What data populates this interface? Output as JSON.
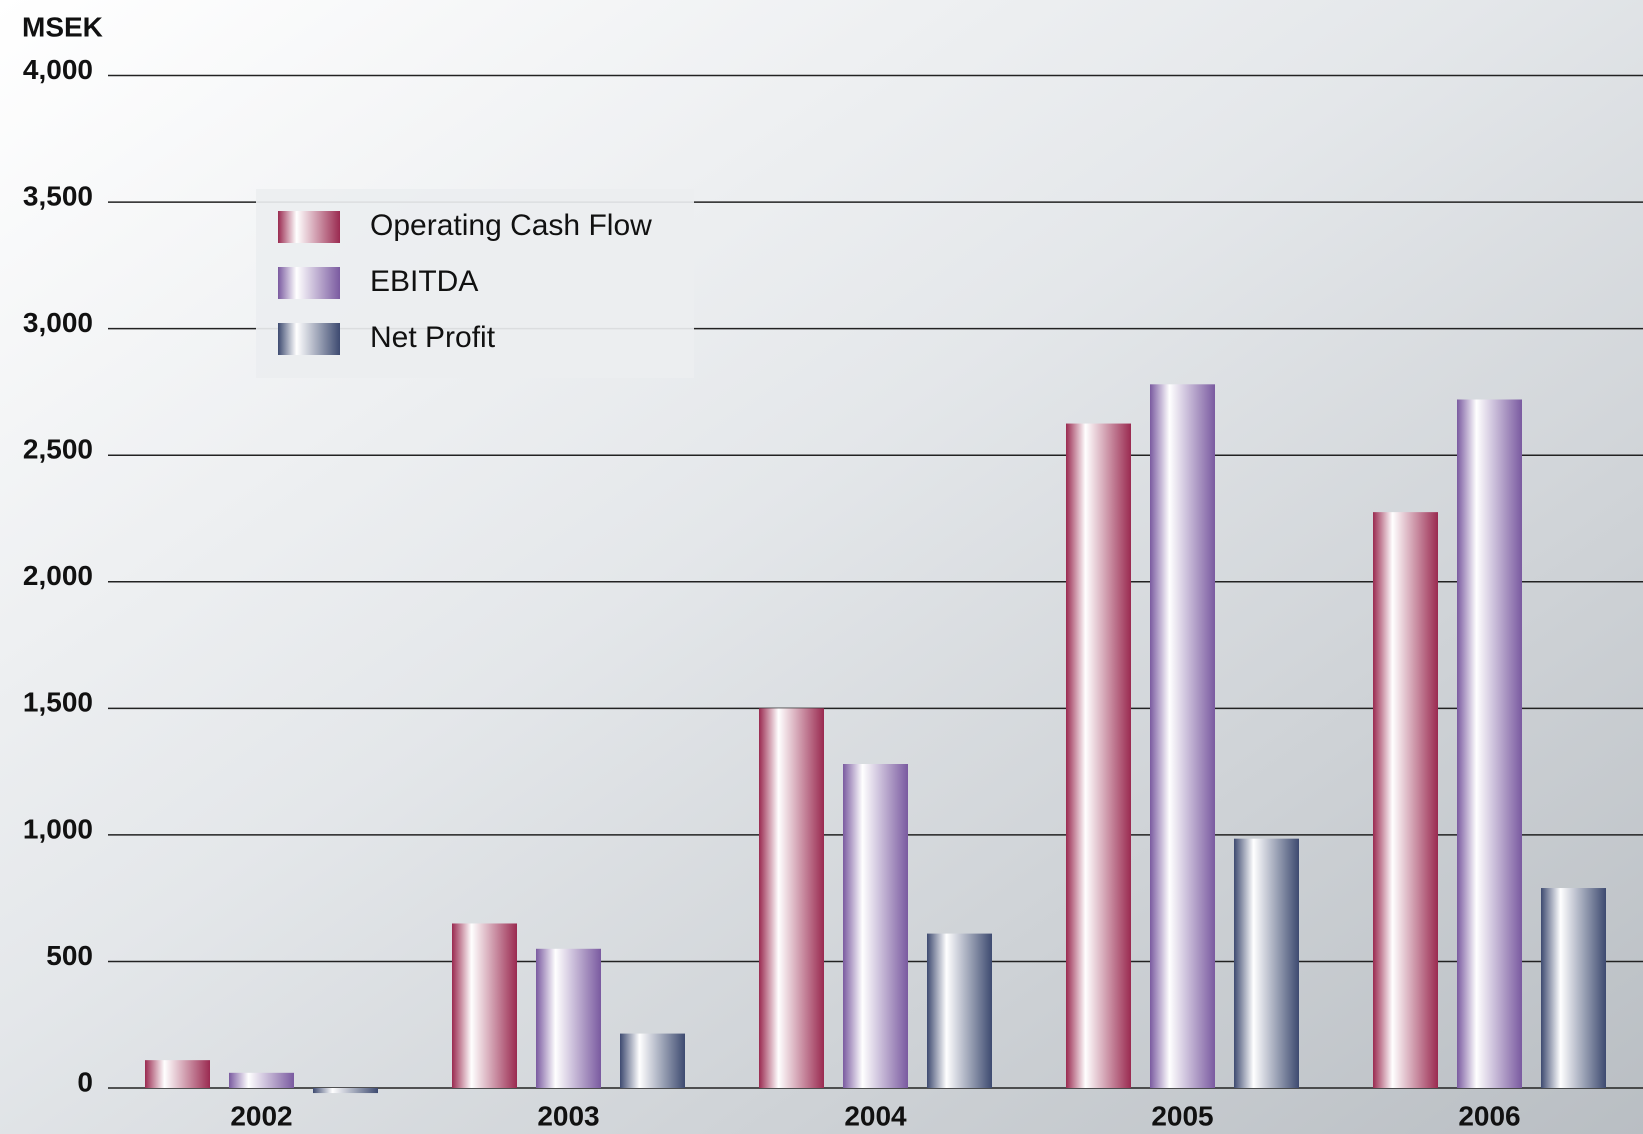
{
  "chart_data": {
    "type": "bar",
    "y_label": "MSEK",
    "categories": [
      "2002",
      "2003",
      "2004",
      "2005",
      "2006"
    ],
    "series": [
      {
        "name": "Operating Cash Flow",
        "color": "#9a2a50",
        "values": [
          110,
          650,
          1500,
          2625,
          2275
        ]
      },
      {
        "name": "EBITDA",
        "color": "#7a5aa0",
        "values": [
          60,
          550,
          1280,
          2780,
          2720
        ]
      },
      {
        "name": "Net Profit",
        "color": "#3d4a70",
        "values": [
          -20,
          215,
          610,
          985,
          790
        ]
      }
    ],
    "ylim": [
      0,
      4000
    ],
    "yticks": [
      0,
      500,
      {
        "value": 1000,
        "label": "1,000"
      },
      {
        "value": 1500,
        "label": "1,500"
      },
      {
        "value": 2000,
        "label": "2,000"
      },
      {
        "value": 2500,
        "label": "2,500"
      },
      {
        "value": 3000,
        "label": "3,000"
      },
      {
        "value": 3500,
        "label": "3,500"
      },
      {
        "value": 4000,
        "label": "4,000"
      }
    ],
    "grid": true,
    "legend": "upper left"
  }
}
